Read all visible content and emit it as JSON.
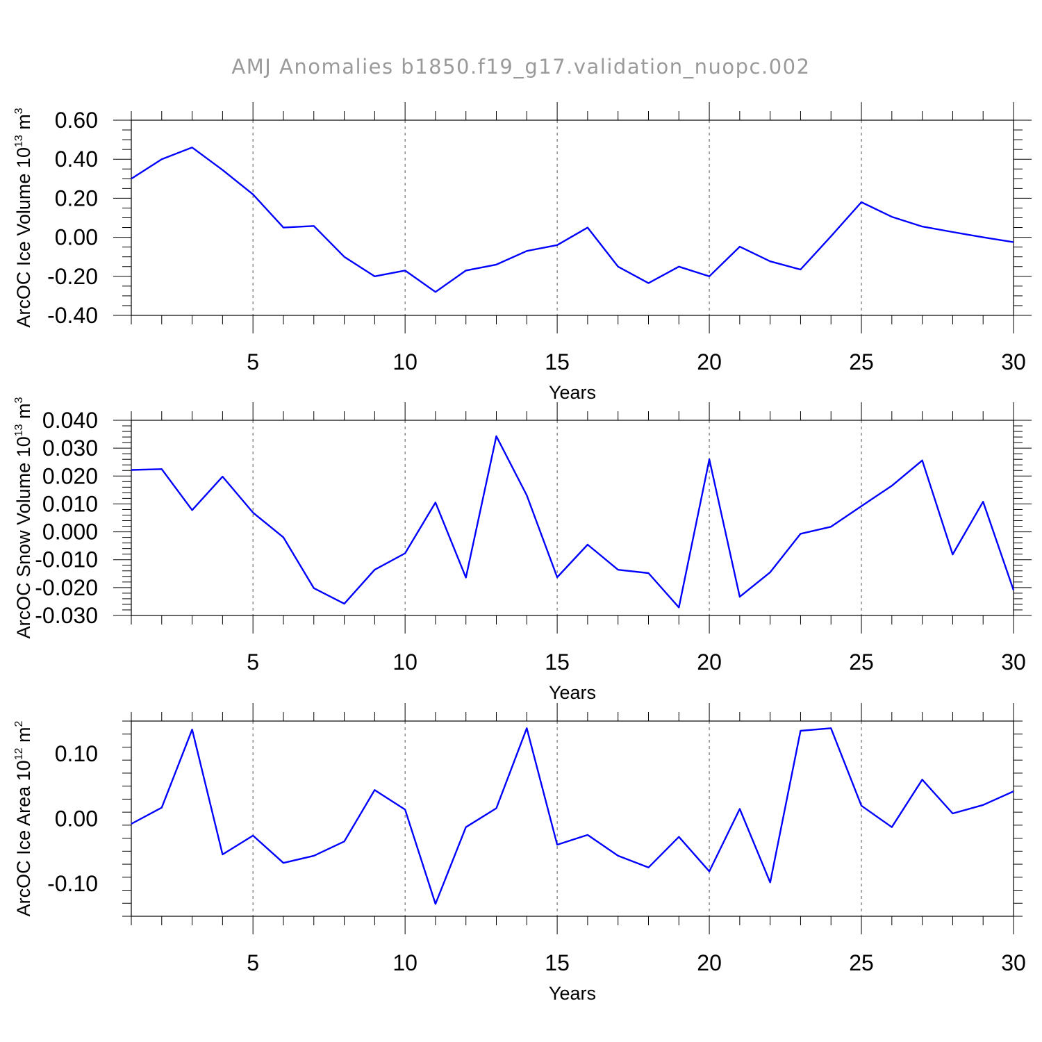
{
  "chart_data": {
    "title": "AMJ Anomalies b1850.f19_g17.validation_nuopc.002",
    "panels": [
      {
        "type": "line",
        "ylabel": "ArcOC Ice Volume 10",
        "ylabel_sup": "13",
        "ylabel_unit": "m",
        "ylabel_unit_sup": "3",
        "xlabel": "Years",
        "xlim": [
          1,
          30
        ],
        "ylim": [
          -0.4,
          0.6
        ],
        "xticks": [
          5,
          10,
          15,
          20,
          25,
          30
        ],
        "xtick_labels": [
          "5",
          "10",
          "15",
          "20",
          "25",
          "30"
        ],
        "yticks": [
          -0.4,
          -0.2,
          0.0,
          0.2,
          0.4,
          0.6
        ],
        "ytick_labels": [
          "-0.40",
          "-0.20",
          "0.00",
          "0.20",
          "0.40",
          "0.60"
        ],
        "yminor_step": 0.05,
        "grid_x": [
          5,
          10,
          15,
          20,
          25
        ],
        "color": "#0000ff",
        "x": [
          1,
          2,
          3,
          4,
          5,
          6,
          7,
          8,
          9,
          10,
          11,
          12,
          13,
          14,
          15,
          16,
          17,
          18,
          19,
          20,
          21,
          22,
          23,
          24,
          25,
          26,
          27,
          28,
          29,
          30
        ],
        "values": [
          0.3,
          0.4,
          0.46,
          0.345,
          0.22,
          0.05,
          0.058,
          -0.1,
          -0.2,
          -0.17,
          -0.28,
          -0.17,
          -0.14,
          -0.07,
          -0.04,
          0.05,
          -0.15,
          -0.235,
          -0.15,
          -0.2,
          -0.048,
          -0.123,
          -0.165,
          0.005,
          0.18,
          0.105,
          0.055,
          0.027,
          0.0,
          -0.025
        ]
      },
      {
        "type": "line",
        "ylabel": "ArcOC Snow Volume 10",
        "ylabel_sup": "13",
        "ylabel_unit": "m",
        "ylabel_unit_sup": "3",
        "xlabel": "Years",
        "xlim": [
          1,
          30
        ],
        "ylim": [
          -0.03,
          0.04
        ],
        "xticks": [
          5,
          10,
          15,
          20,
          25,
          30
        ],
        "xtick_labels": [
          "5",
          "10",
          "15",
          "20",
          "25",
          "30"
        ],
        "yticks": [
          -0.03,
          -0.02,
          -0.01,
          0.0,
          0.01,
          0.02,
          0.03,
          0.04
        ],
        "ytick_labels": [
          "-0.030",
          "-0.020",
          "-0.010",
          "0.000",
          "0.010",
          "0.020",
          "0.030",
          "0.040"
        ],
        "yminor_step": 0.002,
        "grid_x": [
          5,
          10,
          15,
          20,
          25
        ],
        "color": "#0000ff",
        "x": [
          1,
          2,
          3,
          4,
          5,
          6,
          7,
          8,
          9,
          10,
          11,
          12,
          13,
          14,
          15,
          16,
          17,
          18,
          19,
          20,
          21,
          22,
          23,
          24,
          25,
          26,
          27,
          28,
          29,
          30
        ],
        "values": [
          0.0222,
          0.0225,
          0.0078,
          0.0198,
          0.0069,
          -0.002,
          -0.0202,
          -0.0258,
          -0.0136,
          -0.0077,
          0.0105,
          -0.0164,
          0.0343,
          0.0131,
          -0.0163,
          -0.0046,
          -0.0136,
          -0.0148,
          -0.0271,
          0.026,
          -0.0233,
          -0.0145,
          -0.0007,
          0.0018,
          0.0092,
          0.0165,
          0.0256,
          -0.0081,
          0.0108,
          -0.0209
        ]
      },
      {
        "type": "line",
        "ylabel": "ArcOC Ice Area 10",
        "ylabel_sup": "12",
        "ylabel_unit": "m",
        "ylabel_unit_sup": "2",
        "xlabel": "Years",
        "xlim": [
          1,
          30
        ],
        "ylim": [
          -0.15,
          0.15
        ],
        "xticks": [
          5,
          10,
          15,
          20,
          25,
          30
        ],
        "xtick_labels": [
          "5",
          "10",
          "15",
          "20",
          "25",
          "30"
        ],
        "yticks": [
          -0.1,
          0.0,
          0.1
        ],
        "ytick_labels": [
          "-0.10",
          "0.00",
          "0.10"
        ],
        "yminor_step": 0.02,
        "grid_x": [
          5,
          10,
          15,
          20,
          25
        ],
        "color": "#0000ff",
        "x": [
          1,
          2,
          3,
          4,
          5,
          6,
          7,
          8,
          9,
          10,
          11,
          12,
          13,
          14,
          15,
          16,
          17,
          18,
          19,
          20,
          21,
          22,
          23,
          24,
          25,
          26,
          27,
          28,
          29,
          30
        ],
        "values": [
          -0.008,
          0.017,
          0.137,
          -0.055,
          -0.026,
          -0.068,
          -0.057,
          -0.035,
          0.044,
          0.014,
          -0.131,
          -0.013,
          0.016,
          0.139,
          -0.04,
          -0.025,
          -0.057,
          -0.075,
          -0.028,
          -0.081,
          0.015,
          -0.098,
          0.135,
          0.139,
          0.02,
          -0.013,
          0.06,
          0.008,
          0.021,
          0.042
        ]
      }
    ]
  }
}
